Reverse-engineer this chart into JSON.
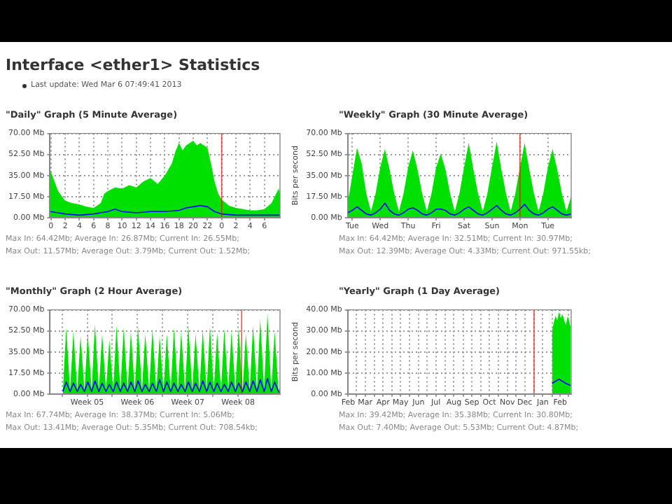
{
  "chart_data": [
    {
      "type": "other",
      "title": "Interface <ether1> Statistics",
      "annotations": [
        "Last update: Wed Mar 6 07:49:41 2013"
      ]
    },
    {
      "type": "area",
      "title": "\"Daily\" Graph (5 Minute Average)",
      "marker": "none",
      "grid": true,
      "xlim": [
        "2013-03-04T23:52",
        "2013-03-06T08:12"
      ],
      "xticks": [
        {
          "value": "2013-03-05T00:00",
          "label": "0"
        },
        {
          "value": "2013-03-05T02:00",
          "label": "2"
        },
        {
          "value": "2013-03-05T04:00",
          "label": "4"
        },
        {
          "value": "2013-03-05T06:00",
          "label": "6"
        },
        {
          "value": "2013-03-05T08:00",
          "label": "8"
        },
        {
          "value": "2013-03-05T10:00",
          "label": "10"
        },
        {
          "value": "2013-03-05T12:00",
          "label": "12"
        },
        {
          "value": "2013-03-05T14:00",
          "label": "14"
        },
        {
          "value": "2013-03-05T16:00",
          "label": "16"
        },
        {
          "value": "2013-03-05T18:00",
          "label": "18"
        },
        {
          "value": "2013-03-05T20:00",
          "label": "20"
        },
        {
          "value": "2013-03-05T22:00",
          "label": "22"
        },
        {
          "value": "2013-03-06T00:00",
          "label": "0"
        },
        {
          "value": "2013-03-06T02:00",
          "label": "2"
        },
        {
          "value": "2013-03-06T04:00",
          "label": "4"
        },
        {
          "value": "2013-03-06T06:00",
          "label": "6"
        }
      ],
      "ylim": [
        0,
        70
      ],
      "yticks": [
        {
          "value": 0,
          "label": "0.00 Mb"
        },
        {
          "value": 17.5,
          "label": "17.50 Mb"
        },
        {
          "value": 35,
          "label": "35.00 Mb"
        },
        {
          "value": 52.5,
          "label": "52.50 Mb"
        },
        {
          "value": 70,
          "label": "70.00 Mb"
        }
      ],
      "series": [
        {
          "type": "area",
          "color": "#00e000",
          "x": [
            "2013-03-04T23:52",
            "2013-03-05T00:30",
            "2013-03-05T01:00",
            "2013-03-05T01:30",
            "2013-03-05T02:00",
            "2013-03-05T03:00",
            "2013-03-05T04:00",
            "2013-03-05T05:00",
            "2013-03-05T06:00",
            "2013-03-05T07:00",
            "2013-03-05T07:30",
            "2013-03-05T08:00",
            "2013-03-05T09:00",
            "2013-03-05T10:00",
            "2013-03-05T11:00",
            "2013-03-05T12:00",
            "2013-03-05T13:00",
            "2013-03-05T14:00",
            "2013-03-05T15:00",
            "2013-03-05T16:00",
            "2013-03-05T17:00",
            "2013-03-05T17:30",
            "2013-03-05T18:00",
            "2013-03-05T18:30",
            "2013-03-05T19:00",
            "2013-03-05T20:00",
            "2013-03-05T20:30",
            "2013-03-05T21:00",
            "2013-03-05T22:00",
            "2013-03-05T22:30",
            "2013-03-05T23:00",
            "2013-03-05T23:30",
            "2013-03-06T00:00",
            "2013-03-06T01:00",
            "2013-03-06T02:00",
            "2013-03-06T03:00",
            "2013-03-06T04:00",
            "2013-03-06T05:00",
            "2013-03-06T06:00",
            "2013-03-06T07:00",
            "2013-03-06T07:30",
            "2013-03-06T08:00",
            "2013-03-06T08:12"
          ],
          "values": [
            40,
            30,
            22,
            18,
            14,
            12,
            11,
            9,
            8,
            12,
            20,
            22,
            25,
            24,
            27,
            25,
            30,
            33,
            28,
            35,
            45,
            55,
            62,
            56,
            60,
            64,
            60,
            62,
            58,
            45,
            30,
            20,
            15,
            10,
            8,
            7,
            6,
            6,
            7,
            12,
            18,
            24,
            20
          ]
        },
        {
          "type": "line",
          "color": "#0000ff",
          "x": [
            "2013-03-04T23:52",
            "2013-03-05T01:00",
            "2013-03-05T02:00",
            "2013-03-05T04:00",
            "2013-03-05T06:00",
            "2013-03-05T08:00",
            "2013-03-05T09:00",
            "2013-03-05T10:00",
            "2013-03-05T12:00",
            "2013-03-05T14:00",
            "2013-03-05T16:00",
            "2013-03-05T18:00",
            "2013-03-05T19:00",
            "2013-03-05T20:00",
            "2013-03-05T21:00",
            "2013-03-05T22:00",
            "2013-03-05T23:00",
            "2013-03-06T00:00",
            "2013-03-06T02:00",
            "2013-03-06T04:00",
            "2013-03-06T06:00",
            "2013-03-06T08:00",
            "2013-03-06T08:12"
          ],
          "values": [
            5,
            4,
            3,
            2,
            3,
            5,
            7,
            5,
            4,
            5,
            5,
            6,
            8,
            9,
            10,
            9,
            5,
            3,
            2,
            2,
            2,
            2,
            2
          ]
        }
      ],
      "ref_lines": [
        {
          "axis": "x",
          "value": "2013-03-06T00:00",
          "color": "#ff0000"
        }
      ],
      "annotations": [
        "Max In: 64.42Mb; Average In: 26.87Mb; Current In: 26.55Mb;",
        "Max Out: 11.57Mb; Average Out: 3.79Mb; Current Out: 1.52Mb;"
      ]
    },
    {
      "type": "area",
      "title": "\"Weekly\" Graph (30 Minute Average)",
      "ylabel": "Bits per second",
      "marker": "none",
      "grid": true,
      "categories": [
        null,
        "Tue",
        null,
        null,
        null,
        null,
        null,
        "Wed",
        null,
        null,
        null,
        null,
        null,
        "Thu",
        null,
        null,
        null,
        null,
        null,
        "Fri",
        null,
        null,
        null,
        null,
        null,
        "Sat",
        null,
        null,
        null,
        null,
        null,
        "Sun",
        null,
        null,
        null,
        null,
        null,
        "Mon",
        null,
        null,
        null,
        null,
        null,
        "Tue",
        null,
        null,
        null,
        null,
        null
      ],
      "ylim": [
        0,
        70
      ],
      "yticks": [
        {
          "value": 0,
          "label": "0.00 Mb"
        },
        {
          "value": 17.5,
          "label": "17.50 Mb"
        },
        {
          "value": 35,
          "label": "35.00 Mb"
        },
        {
          "value": 52.5,
          "label": "52.50 Mb"
        },
        {
          "value": 70,
          "label": "70.00 Mb"
        }
      ],
      "series": [
        {
          "type": "area",
          "color": "#00e000",
          "values": [
            12,
            35,
            58,
            45,
            20,
            5,
            20,
            42,
            57,
            40,
            20,
            5,
            20,
            42,
            56,
            40,
            20,
            5,
            20,
            42,
            53,
            40,
            20,
            5,
            20,
            42,
            62,
            40,
            20,
            5,
            20,
            42,
            63,
            40,
            20,
            5,
            20,
            42,
            62,
            40,
            20,
            5,
            20,
            42,
            57,
            40,
            20,
            5,
            18
          ]
        },
        {
          "type": "line",
          "color": "#0000ff",
          "values": [
            4,
            6,
            9,
            6,
            3,
            2,
            4,
            7,
            12,
            6,
            3,
            2,
            4,
            7,
            8,
            6,
            3,
            2,
            4,
            7,
            7,
            6,
            3,
            2,
            4,
            7,
            9,
            6,
            3,
            2,
            4,
            7,
            10,
            6,
            3,
            2,
            4,
            7,
            11,
            6,
            3,
            2,
            4,
            7,
            9,
            6,
            3,
            2,
            3
          ]
        }
      ],
      "ref_lines": [
        {
          "axis": "x",
          "value": "Mon",
          "color": "#ff0000"
        }
      ],
      "annotations": [
        "Max In: 64.42Mb; Average In: 32.51Mb; Current In: 30.97Mb;",
        "Max Out: 12.39Mb; Average Out: 4.33Mb; Current Out: 971.55kb;"
      ]
    },
    {
      "type": "area",
      "title": "\"Monthly\" Graph (2 Hour Average)",
      "marker": "none",
      "grid": true,
      "xlim": [
        "2013-02-02T08:00",
        "2013-03-06T08:00"
      ],
      "xticks": [
        {
          "value": "2013-02-04",
          "label": null
        },
        {
          "value": "2013-02-07T12:00",
          "label": "Week 05"
        },
        {
          "value": "2013-02-11",
          "label": null
        },
        {
          "value": "2013-02-14T12:00",
          "label": "Week 06"
        },
        {
          "value": "2013-02-18",
          "label": null
        },
        {
          "value": "2013-02-21T12:00",
          "label": "Week 07"
        },
        {
          "value": "2013-02-25",
          "label": null
        },
        {
          "value": "2013-02-28T12:00",
          "label": "Week 08"
        }
      ],
      "ylim": [
        0,
        70
      ],
      "yticks": [
        {
          "value": 0,
          "label": "0.00 Mb"
        },
        {
          "value": 17.5,
          "label": "17.50 Mb"
        },
        {
          "value": 35,
          "label": "35.00 Mb"
        },
        {
          "value": 52.5,
          "label": "52.50 Mb"
        },
        {
          "value": 70,
          "label": "70.00 Mb"
        }
      ],
      "series": [
        {
          "type": "area",
          "color": "#00e000",
          "x": [
            "2013-02-04T03:00",
            "2013-02-04T14:00",
            "2013-02-05T03:00",
            "2013-02-05T14:00",
            "2013-02-06T03:00",
            "2013-02-06T14:00",
            "2013-02-07T03:00",
            "2013-02-07T14:00",
            "2013-02-08T03:00",
            "2013-02-08T14:00",
            "2013-02-09T03:00",
            "2013-02-09T14:00",
            "2013-02-10T03:00",
            "2013-02-10T14:00",
            "2013-02-11T03:00",
            "2013-02-11T14:00",
            "2013-02-12T03:00",
            "2013-02-12T14:00",
            "2013-02-13T03:00",
            "2013-02-13T14:00",
            "2013-02-14T03:00",
            "2013-02-14T14:00",
            "2013-02-15T03:00",
            "2013-02-15T14:00",
            "2013-02-16T03:00",
            "2013-02-16T14:00",
            "2013-02-17T03:00",
            "2013-02-17T14:00",
            "2013-02-18T03:00",
            "2013-02-18T14:00",
            "2013-02-19T03:00",
            "2013-02-19T14:00",
            "2013-02-20T03:00",
            "2013-02-20T14:00",
            "2013-02-21T03:00",
            "2013-02-21T14:00",
            "2013-02-22T03:00",
            "2013-02-22T14:00",
            "2013-02-23T03:00",
            "2013-02-23T14:00",
            "2013-02-24T03:00",
            "2013-02-24T14:00",
            "2013-02-25T03:00",
            "2013-02-25T14:00",
            "2013-02-26T03:00",
            "2013-02-26T14:00",
            "2013-02-27T03:00",
            "2013-02-27T14:00",
            "2013-02-28T03:00",
            "2013-02-28T14:00",
            "2013-03-01T03:00",
            "2013-03-01T14:00",
            "2013-03-02T03:00",
            "2013-03-02T14:00",
            "2013-03-03T03:00",
            "2013-03-03T14:00",
            "2013-03-04T03:00",
            "2013-03-04T14:00",
            "2013-03-05T03:00",
            "2013-03-05T14:00",
            "2013-03-06T03:00",
            "2013-03-06T08:00"
          ],
          "values": [
            3,
            55,
            3,
            52,
            3,
            48,
            3,
            50,
            3,
            58,
            3,
            50,
            3,
            45,
            3,
            57,
            3,
            55,
            3,
            52,
            3,
            56,
            3,
            50,
            3,
            54,
            3,
            48,
            3,
            50,
            3,
            55,
            3,
            52,
            3,
            57,
            3,
            50,
            3,
            53,
            3,
            56,
            3,
            51,
            3,
            54,
            3,
            52,
            3,
            55,
            3,
            50,
            3,
            57,
            3,
            62,
            3,
            67,
            3,
            52,
            3,
            5
          ]
        },
        {
          "type": "line",
          "color": "#0000ff",
          "x": [
            "2013-02-04T03:00",
            "2013-02-04T14:00",
            "2013-02-05T03:00",
            "2013-02-05T14:00",
            "2013-02-06T03:00",
            "2013-02-06T14:00",
            "2013-02-07T03:00",
            "2013-02-07T14:00",
            "2013-02-08T03:00",
            "2013-02-08T14:00",
            "2013-02-09T03:00",
            "2013-02-09T14:00",
            "2013-02-10T03:00",
            "2013-02-10T14:00",
            "2013-02-11T03:00",
            "2013-02-11T14:00",
            "2013-02-12T03:00",
            "2013-02-12T14:00",
            "2013-02-13T03:00",
            "2013-02-13T14:00",
            "2013-02-14T03:00",
            "2013-02-14T14:00",
            "2013-02-15T03:00",
            "2013-02-15T14:00",
            "2013-02-16T03:00",
            "2013-02-16T14:00",
            "2013-02-17T03:00",
            "2013-02-17T14:00",
            "2013-02-18T03:00",
            "2013-02-18T14:00",
            "2013-02-19T03:00",
            "2013-02-19T14:00",
            "2013-02-20T03:00",
            "2013-02-20T14:00",
            "2013-02-21T03:00",
            "2013-02-21T14:00",
            "2013-02-22T03:00",
            "2013-02-22T14:00",
            "2013-02-23T03:00",
            "2013-02-23T14:00",
            "2013-02-24T03:00",
            "2013-02-24T14:00",
            "2013-02-25T03:00",
            "2013-02-25T14:00",
            "2013-02-26T03:00",
            "2013-02-26T14:00",
            "2013-02-27T03:00",
            "2013-02-27T14:00",
            "2013-02-28T03:00",
            "2013-02-28T14:00",
            "2013-03-01T03:00",
            "2013-03-01T14:00",
            "2013-03-02T03:00",
            "2013-03-02T14:00",
            "2013-03-03T03:00",
            "2013-03-03T14:00",
            "2013-03-04T03:00",
            "2013-03-04T14:00",
            "2013-03-05T03:00",
            "2013-03-05T14:00",
            "2013-03-06T03:00",
            "2013-03-06T08:00"
          ],
          "values": [
            2,
            10,
            2,
            9,
            2,
            8,
            2,
            10,
            2,
            11,
            2,
            9,
            2,
            8,
            2,
            10,
            2,
            9,
            2,
            10,
            2,
            11,
            2,
            8,
            2,
            9,
            2,
            12,
            2,
            10,
            2,
            9,
            2,
            8,
            2,
            10,
            2,
            9,
            2,
            11,
            2,
            10,
            2,
            9,
            2,
            8,
            2,
            10,
            2,
            9,
            2,
            10,
            2,
            11,
            2,
            12,
            2,
            13,
            2,
            10,
            2,
            1
          ]
        }
      ],
      "ref_lines": [
        {
          "axis": "x",
          "value": "2013-03-01",
          "color": "#ff0000"
        }
      ],
      "annotations": [
        "Max In: 67.74Mb; Average In: 38.37Mb; Current In: 5.06Mb;",
        "Max Out: 13.41Mb; Average Out: 5.35Mb; Current Out: 708.54kb;"
      ]
    },
    {
      "type": "area",
      "title": "\"Yearly\" Graph (1 Day Average)",
      "ylabel": "Bits per second",
      "marker": "none",
      "grid": true,
      "xlim": [
        "2012-02-15",
        "2013-03-06"
      ],
      "xticks": [
        {
          "value": "2012-02-16",
          "label": "Feb"
        },
        {
          "value": "2012-03-01",
          "label": null
        },
        {
          "value": "2012-03-16",
          "label": "Mar"
        },
        {
          "value": "2012-04-01",
          "label": null
        },
        {
          "value": "2012-04-16",
          "label": "Apr"
        },
        {
          "value": "2012-05-01",
          "label": null
        },
        {
          "value": "2012-05-16",
          "label": "May"
        },
        {
          "value": "2012-06-01",
          "label": null
        },
        {
          "value": "2012-06-16",
          "label": "Jun"
        },
        {
          "value": "2012-07-01",
          "label": null
        },
        {
          "value": "2012-07-16",
          "label": "Jul"
        },
        {
          "value": "2012-08-01",
          "label": null
        },
        {
          "value": "2012-08-16",
          "label": "Aug"
        },
        {
          "value": "2012-09-01",
          "label": null
        },
        {
          "value": "2012-09-16",
          "label": "Sep"
        },
        {
          "value": "2012-10-01",
          "label": null
        },
        {
          "value": "2012-10-16",
          "label": "Oct"
        },
        {
          "value": "2012-11-01",
          "label": null
        },
        {
          "value": "2012-11-16",
          "label": "Nov"
        },
        {
          "value": "2012-12-01",
          "label": null
        },
        {
          "value": "2012-12-16",
          "label": "Dec"
        },
        {
          "value": "2013-01-01",
          "label": null
        },
        {
          "value": "2013-01-16",
          "label": "Jan"
        },
        {
          "value": "2013-02-01",
          "label": null
        },
        {
          "value": "2013-02-15",
          "label": "Feb"
        },
        {
          "value": "2013-03-01",
          "label": null
        }
      ],
      "ylim": [
        0,
        40
      ],
      "yticks": [
        {
          "value": 0,
          "label": "0.00 Mb"
        },
        {
          "value": 10,
          "label": "10.00 Mb"
        },
        {
          "value": 20,
          "label": "20.00 Mb"
        },
        {
          "value": 30,
          "label": "30.00 Mb"
        },
        {
          "value": 40,
          "label": "40.00 Mb"
        }
      ],
      "series": [
        {
          "type": "area",
          "color": "#00e000",
          "x": [
            "2013-02-01",
            "2013-02-04",
            "2013-02-07",
            "2013-02-10",
            "2013-02-13",
            "2013-02-16",
            "2013-02-19",
            "2013-02-22",
            "2013-02-25",
            "2013-02-28",
            "2013-03-05"
          ],
          "values": [
            30,
            34,
            37,
            35,
            39,
            36,
            38,
            35,
            33,
            37,
            32
          ]
        },
        {
          "type": "line",
          "color": "#0000ff",
          "x": [
            "2013-02-01",
            "2013-02-07",
            "2013-02-13",
            "2013-02-19",
            "2013-02-25",
            "2013-03-05"
          ],
          "values": [
            5,
            6,
            7,
            6,
            5,
            4
          ]
        }
      ],
      "ref_lines": [
        {
          "axis": "x",
          "value": "2013-01-01",
          "color": "#ff0000"
        }
      ],
      "annotations": [
        "Max In: 39.42Mb; Average In: 35.38Mb; Current In: 30.80Mb;",
        "Max Out: 7.40Mb; Average Out: 5.53Mb; Current Out: 4.87Mb;"
      ]
    }
  ]
}
